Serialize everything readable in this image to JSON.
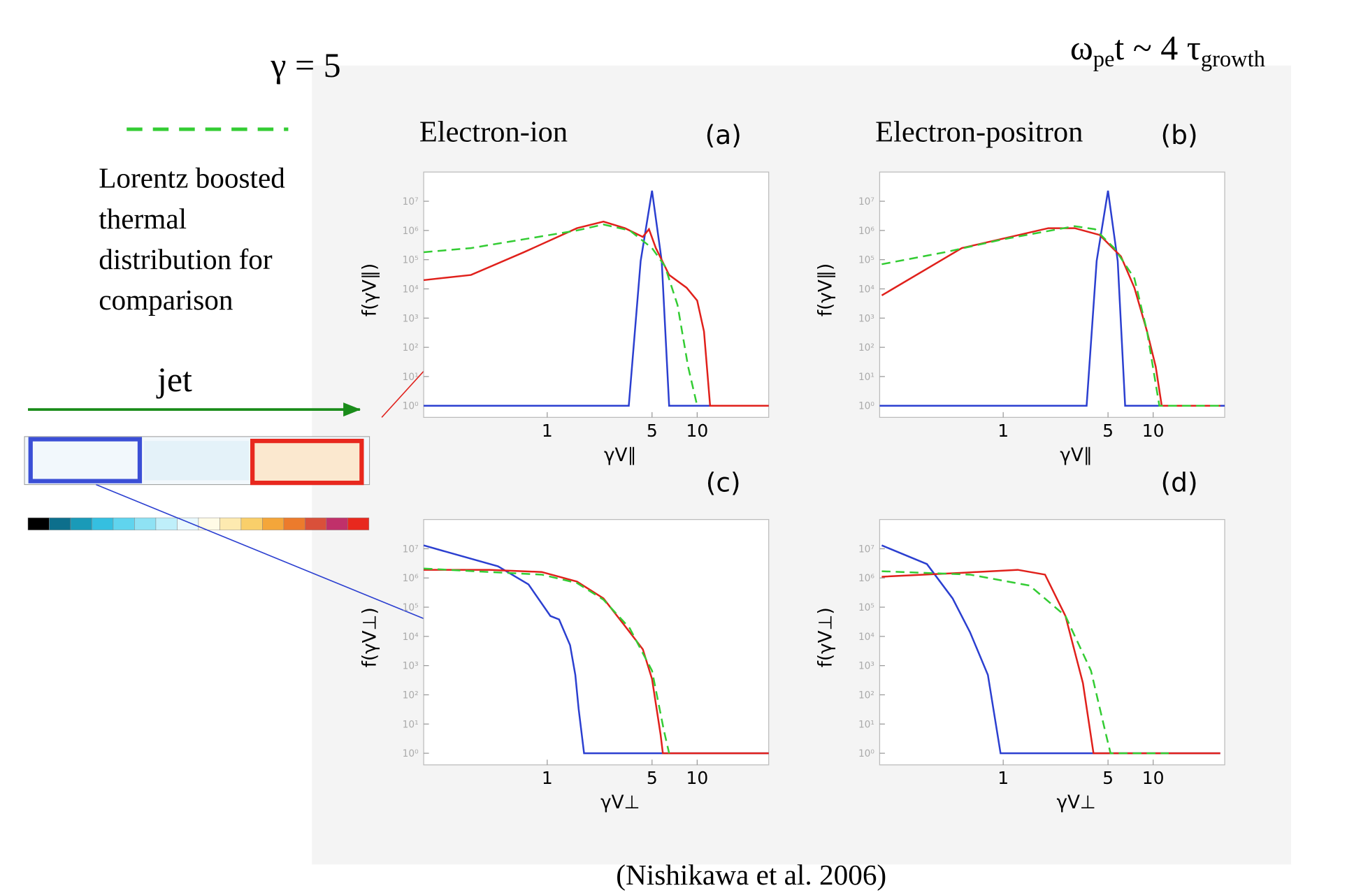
{
  "slide": {
    "gamma_label": "γ = 5",
    "time_label": [
      "ω",
      "pe",
      "t  ~ 4 τ",
      "growth"
    ],
    "legend_text": [
      "Lorentz boosted",
      "thermal",
      "distribution for",
      "comparison"
    ],
    "jet_label": "jet",
    "citation": "(Nishikawa et al. 2006)"
  },
  "chart_data": [
    {
      "type": "line",
      "title": "Electron-ion",
      "label": "(a)",
      "x_label": "γV∥",
      "y_label": "f(γV∥)",
      "xlog": true,
      "ylog": true,
      "xlim": [
        0.15,
        30
      ],
      "ylim": [
        0.4,
        100000000
      ],
      "xticks": [
        1,
        5,
        10
      ],
      "yticks": [
        {
          "value": 1,
          "label": "10⁰"
        },
        {
          "value": 10,
          "label": "10¹"
        },
        {
          "value": 100,
          "label": "10²"
        },
        {
          "value": 1000,
          "label": "10³"
        },
        {
          "value": 10000,
          "label": "10⁴"
        },
        {
          "value": 100000,
          "label": "10⁵"
        },
        {
          "value": 1000000,
          "label": "10⁶"
        },
        {
          "value": 10000000,
          "label": "10⁷"
        }
      ],
      "series": [
        {
          "color": "#2b3fd0",
          "dashed": false,
          "x": [
            0.15,
            3.5,
            4.2,
            5,
            5.8,
            6.5,
            30
          ],
          "values": [
            1,
            1,
            90000,
            23000000,
            90000,
            1,
            1
          ]
        },
        {
          "color": "#e0201b",
          "dashed": false,
          "x": [
            0.15,
            0.31,
            0.7,
            1.58,
            2.37,
            3.3,
            4.34,
            4.77,
            5.3,
            6.5,
            8.5,
            10,
            11.1,
            12.2,
            30
          ],
          "values": [
            20000,
            30000,
            180000,
            1200000,
            2000000,
            1200000,
            600000,
            1100000,
            250000,
            30000,
            11000,
            4000,
            350,
            1,
            1
          ]
        },
        {
          "color": "#33cc33",
          "dashed": true,
          "x": [
            0.15,
            0.31,
            0.7,
            1.58,
            2.37,
            3.55,
            5,
            6.1,
            7.4,
            8.7,
            10
          ],
          "values": [
            180000,
            250000,
            500000,
            1000000,
            1600000,
            1000000,
            250000,
            60000,
            2800,
            22,
            1
          ]
        }
      ]
    },
    {
      "type": "line",
      "title": "Electron-positron",
      "label": "(b)",
      "x_label": "γV∥",
      "y_label": "f(γV∥)",
      "xlog": true,
      "ylog": true,
      "xlim": [
        0.15,
        30
      ],
      "ylim": [
        0.4,
        100000000
      ],
      "xticks": [
        1,
        5,
        10
      ],
      "yticks": [
        {
          "value": 1,
          "label": "10⁰"
        },
        {
          "value": 10,
          "label": "10¹"
        },
        {
          "value": 100,
          "label": "10²"
        },
        {
          "value": 1000,
          "label": "10³"
        },
        {
          "value": 10000,
          "label": "10⁴"
        },
        {
          "value": 100000,
          "label": "10⁵"
        },
        {
          "value": 1000000,
          "label": "10⁶"
        },
        {
          "value": 10000000,
          "label": "10⁷"
        }
      ],
      "series": [
        {
          "color": "#2b3fd0",
          "dashed": false,
          "x": [
            0.15,
            3.6,
            4.2,
            5,
            5.8,
            6.5,
            30
          ],
          "values": [
            1,
            1,
            90000,
            23000000,
            90000,
            1,
            1
          ]
        },
        {
          "color": "#e0201b",
          "dashed": false,
          "x": [
            0.155,
            0.53,
            2,
            3,
            4.4,
            6.1,
            7.5,
            9.1,
            10.4,
            11.4,
            28
          ],
          "values": [
            6000,
            250000,
            1200000,
            1200000,
            700000,
            130000,
            11000,
            350,
            22,
            1,
            1
          ]
        },
        {
          "color": "#33cc33",
          "dashed": true,
          "x": [
            0.155,
            0.41,
            1,
            3,
            4.1,
            5.5,
            7.5,
            9.1,
            10.4,
            11,
            28
          ],
          "values": [
            70000,
            180000,
            500000,
            1400000,
            1100000,
            250000,
            23000,
            350,
            5.6,
            1,
            1
          ]
        }
      ]
    },
    {
      "type": "line",
      "label": "(c)",
      "x_label": "γV⊥",
      "y_label": "f(γV⊥)",
      "xlog": true,
      "ylog": true,
      "xlim": [
        0.15,
        30
      ],
      "ylim": [
        0.4,
        100000000
      ],
      "xticks": [
        1,
        5,
        10
      ],
      "yticks": [
        {
          "value": 1,
          "label": "10⁰"
        },
        {
          "value": 10,
          "label": "10¹"
        },
        {
          "value": 100,
          "label": "10²"
        },
        {
          "value": 1000,
          "label": "10³"
        },
        {
          "value": 10000,
          "label": "10⁴"
        },
        {
          "value": 100000,
          "label": "10⁵"
        },
        {
          "value": 1000000,
          "label": "10⁶"
        },
        {
          "value": 10000000,
          "label": "10⁷"
        }
      ],
      "series": [
        {
          "color": "#2b3fd0",
          "dashed": false,
          "x": [
            0.15,
            0.47,
            0.75,
            1.05,
            1.2,
            1.42,
            1.54,
            1.62,
            1.76,
            30
          ],
          "values": [
            13000000,
            2500000,
            600000,
            50000,
            38000,
            5000,
            480,
            33,
            1,
            1
          ]
        },
        {
          "color": "#e0201b",
          "dashed": false,
          "x": [
            0.15,
            0.41,
            0.92,
            1.58,
            2.37,
            3.55,
            4.34,
            5,
            5.7,
            5.9,
            30
          ],
          "values": [
            1900000,
            1900000,
            1600000,
            750000,
            200000,
            14000,
            3600,
            350,
            4.4,
            1,
            1
          ]
        },
        {
          "color": "#33cc33",
          "dashed": true,
          "x": [
            0.15,
            0.41,
            0.92,
            1.58,
            2.37,
            3.55,
            5,
            6,
            6.5
          ],
          "values": [
            2100000,
            1600000,
            1300000,
            670000,
            180000,
            19000,
            670,
            6,
            1
          ]
        }
      ]
    },
    {
      "type": "line",
      "label": "(d)",
      "x_label": "γV⊥",
      "y_label": "f(γV⊥)",
      "xlog": true,
      "ylog": true,
      "xlim": [
        0.15,
        30
      ],
      "ylim": [
        0.4,
        100000000
      ],
      "xticks": [
        1,
        5,
        10
      ],
      "yticks": [
        {
          "value": 1,
          "label": "10⁰"
        },
        {
          "value": 10,
          "label": "10¹"
        },
        {
          "value": 100,
          "label": "10²"
        },
        {
          "value": 1000,
          "label": "10³"
        },
        {
          "value": 10000,
          "label": "10⁴"
        },
        {
          "value": 100000,
          "label": "10⁵"
        },
        {
          "value": 1000000,
          "label": "10⁶"
        },
        {
          "value": 10000000,
          "label": "10⁷"
        }
      ],
      "series": [
        {
          "color": "#2b3fd0",
          "dashed": false,
          "x": [
            0.155,
            0.31,
            0.46,
            0.6,
            0.79,
            0.96,
            28
          ],
          "values": [
            13000000,
            3000000,
            200000,
            14000,
            480,
            1,
            1
          ]
        },
        {
          "color": "#e0201b",
          "dashed": false,
          "x": [
            0.155,
            0.53,
            1.25,
            1.9,
            2.6,
            3.4,
            4,
            28
          ],
          "values": [
            1100000,
            1500000,
            1900000,
            1300000,
            50000,
            250,
            1,
            1
          ]
        },
        {
          "color": "#33cc33",
          "dashed": true,
          "x": [
            0.155,
            0.6,
            1.5,
            2.6,
            3.85,
            4.7,
            5.2,
            12.7
          ],
          "values": [
            1700000,
            1300000,
            550000,
            50000,
            670,
            8.5,
            1,
            1
          ]
        }
      ]
    }
  ]
}
